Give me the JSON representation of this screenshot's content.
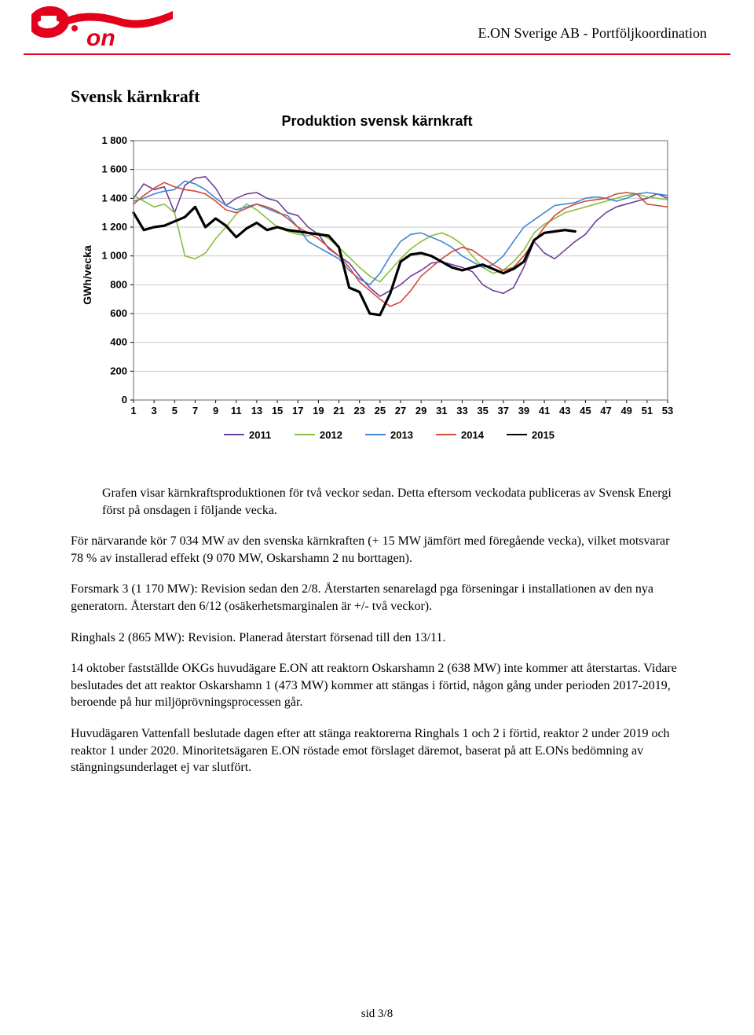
{
  "header": {
    "company_text": "E.ON Sverige AB - Portföljkoordination",
    "logo_color": "#e2001a",
    "logo_text": "e·on"
  },
  "section_title": "Svensk kärnkraft",
  "chart": {
    "type": "line",
    "title": "Produktion svensk kärnkraft",
    "ylabel": "GWh/vecka",
    "ylim": [
      0,
      1800
    ],
    "ytick_step": 200,
    "yticks": [
      "0",
      "200",
      "400",
      "600",
      "800",
      "1 000",
      "1 200",
      "1 400",
      "1 600",
      "1 800"
    ],
    "xticks": [
      1,
      3,
      5,
      7,
      9,
      11,
      13,
      15,
      17,
      19,
      21,
      23,
      25,
      27,
      29,
      31,
      33,
      35,
      37,
      39,
      41,
      43,
      45,
      47,
      49,
      51,
      53
    ],
    "background_color": "#ffffff",
    "grid_color": "#c9c9c9",
    "border_color": "#666666",
    "axis_font": "Arial",
    "axis_fontsize": 13,
    "title_fontsize": 18,
    "series": [
      {
        "name": "2011",
        "color": "#6f3f98",
        "width": 1.6,
        "values": [
          1400,
          1500,
          1460,
          1480,
          1300,
          1490,
          1540,
          1550,
          1470,
          1350,
          1400,
          1430,
          1440,
          1400,
          1380,
          1300,
          1280,
          1200,
          1150,
          1050,
          1000,
          950,
          860,
          780,
          720,
          760,
          800,
          860,
          900,
          950,
          960,
          940,
          920,
          890,
          800,
          760,
          740,
          780,
          920,
          1100,
          1020,
          980,
          1040,
          1100,
          1150,
          1240,
          1300,
          1340,
          1360,
          1380,
          1400,
          1430,
          1400
        ]
      },
      {
        "name": "2012",
        "color": "#8bbf3f",
        "width": 1.6,
        "values": [
          1420,
          1380,
          1340,
          1360,
          1300,
          1000,
          980,
          1020,
          1120,
          1200,
          1290,
          1360,
          1320,
          1260,
          1200,
          1170,
          1150,
          1140,
          1160,
          1120,
          1060,
          990,
          920,
          860,
          820,
          900,
          980,
          1050,
          1100,
          1140,
          1160,
          1130,
          1080,
          1000,
          920,
          880,
          900,
          960,
          1040,
          1160,
          1220,
          1260,
          1300,
          1320,
          1340,
          1360,
          1380,
          1400,
          1420,
          1430,
          1410,
          1400,
          1390
        ]
      },
      {
        "name": "2013",
        "color": "#3f87d4",
        "width": 1.6,
        "values": [
          1380,
          1400,
          1430,
          1450,
          1460,
          1520,
          1500,
          1460,
          1400,
          1350,
          1320,
          1340,
          1360,
          1330,
          1300,
          1280,
          1200,
          1100,
          1060,
          1020,
          980,
          900,
          840,
          800,
          880,
          1000,
          1100,
          1150,
          1160,
          1130,
          1100,
          1060,
          1000,
          960,
          920,
          940,
          1000,
          1100,
          1200,
          1250,
          1300,
          1350,
          1360,
          1370,
          1400,
          1410,
          1400,
          1380,
          1400,
          1430,
          1440,
          1430,
          1420
        ]
      },
      {
        "name": "2014",
        "color": "#d24a3a",
        "width": 1.6,
        "values": [
          1360,
          1420,
          1470,
          1510,
          1480,
          1460,
          1450,
          1430,
          1380,
          1320,
          1300,
          1330,
          1360,
          1340,
          1310,
          1260,
          1200,
          1160,
          1120,
          1060,
          1000,
          920,
          820,
          760,
          700,
          650,
          680,
          760,
          860,
          920,
          980,
          1030,
          1060,
          1040,
          990,
          940,
          900,
          920,
          1000,
          1100,
          1200,
          1280,
          1330,
          1360,
          1380,
          1390,
          1400,
          1430,
          1440,
          1430,
          1360,
          1350,
          1340
        ]
      },
      {
        "name": "2015",
        "color": "#000000",
        "width": 3.2,
        "values": [
          1300,
          1180,
          1200,
          1210,
          1240,
          1270,
          1340,
          1200,
          1260,
          1210,
          1130,
          1190,
          1230,
          1180,
          1200,
          1180,
          1170,
          1160,
          1150,
          1140,
          1060,
          780,
          750,
          600,
          590,
          740,
          960,
          1010,
          1020,
          1000,
          960,
          920,
          900,
          920,
          940,
          910,
          880,
          910,
          960,
          1110,
          1160,
          1170,
          1180,
          1170
        ]
      }
    ],
    "legend": [
      "2011",
      "2012",
      "2013",
      "2014",
      "2015"
    ],
    "legend_colors": [
      "#6f3f98",
      "#8bbf3f",
      "#3f87d4",
      "#d24a3a",
      "#000000"
    ]
  },
  "paragraphs": {
    "p1": "Grafen visar kärnkraftsproduktionen för två veckor sedan. Detta eftersom veckodata publiceras av Svensk Energi först på onsdagen i följande vecka.",
    "p2": "För närvarande kör 7 034 MW av den svenska kärnkraften (+ 15 MW jämfört med föregående vecka), vilket motsvarar 78 % av installerad effekt (9 070 MW, Oskarshamn 2 nu borttagen).",
    "p3": "Forsmark 3 (1 170 MW): Revision sedan den 2/8. Återstarten senarelagd pga förseningar i installationen av den nya generatorn. Återstart den 6/12 (osäkerhetsmarginalen är +/- två veckor).",
    "p4": "Ringhals 2 (865 MW): Revision. Planerad återstart försenad till den 13/11.",
    "p5": "14 oktober fastställde OKGs huvudägare E.ON att reaktorn Oskarshamn 2 (638 MW) inte kommer att återstartas. Vidare beslutades det att reaktor Oskarshamn 1 (473 MW) kommer att stängas i förtid, någon gång under perioden 2017-2019, beroende på hur miljöprövningsprocessen går.",
    "p6": "Huvudägaren Vattenfall beslutade dagen efter att stänga reaktorerna Ringhals 1 och 2 i förtid, reaktor 2 under 2019 och reaktor 1 under 2020. Minoritetsägaren E.ON röstade emot förslaget däremot, baserat på att E.ONs bedömning av stängningsunderlaget ej var slutfört."
  },
  "footer": "sid 3/8"
}
